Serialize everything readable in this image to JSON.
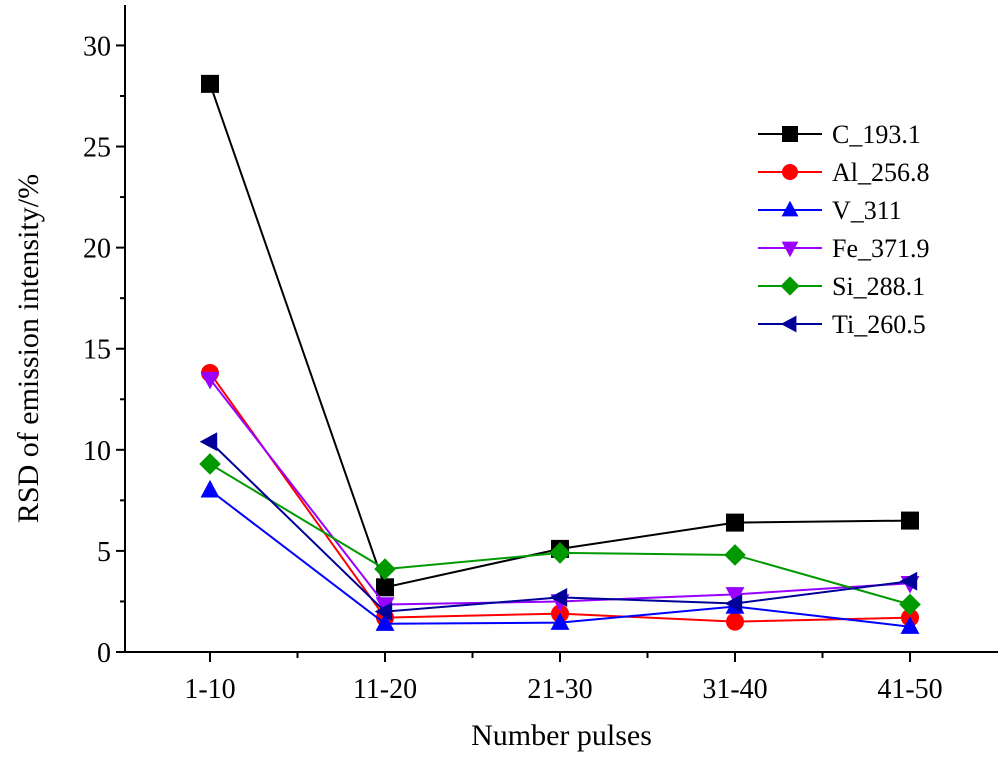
{
  "chart_data": {
    "type": "line",
    "title": "",
    "xlabel": "Number pulses",
    "ylabel": "RSD of emission intensity/%",
    "categories": [
      "1-10",
      "11-20",
      "21-30",
      "31-40",
      "41-50"
    ],
    "ylim": [
      0,
      32
    ],
    "yticks": [
      0,
      5,
      10,
      15,
      20,
      25,
      30
    ],
    "grid": false,
    "legend_position": "top-right",
    "series": [
      {
        "name": "C_193.1",
        "color": "#000000",
        "marker": "square",
        "values": [
          28.1,
          3.2,
          5.1,
          6.4,
          6.5
        ]
      },
      {
        "name": "Al_256.8",
        "color": "#ff0000",
        "marker": "circle",
        "values": [
          13.8,
          1.7,
          1.9,
          1.5,
          1.7
        ]
      },
      {
        "name": "V_311",
        "color": "#0000ff",
        "marker": "triangle-up",
        "values": [
          8.0,
          1.4,
          1.45,
          2.25,
          1.25
        ]
      },
      {
        "name": "Fe_371.9",
        "color": "#9900ff",
        "marker": "triangle-down",
        "values": [
          13.5,
          2.35,
          2.5,
          2.85,
          3.4
        ]
      },
      {
        "name": "Si_288.1",
        "color": "#009900",
        "marker": "diamond",
        "values": [
          9.3,
          4.1,
          4.9,
          4.8,
          2.35
        ]
      },
      {
        "name": "Ti_260.5",
        "color": "#000099",
        "marker": "triangle-left",
        "values": [
          10.4,
          2.0,
          2.7,
          2.4,
          3.5
        ]
      }
    ]
  }
}
